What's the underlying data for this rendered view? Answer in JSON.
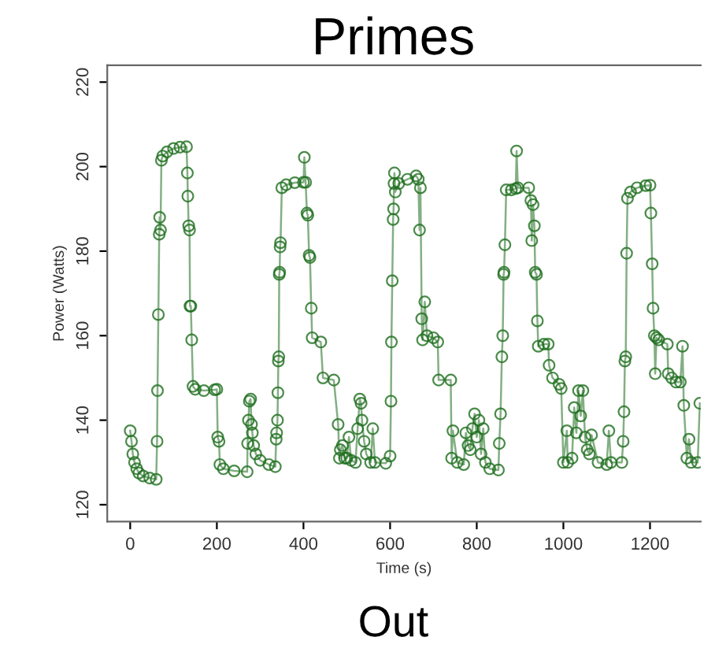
{
  "chart_data": {
    "type": "line",
    "title": "Primes",
    "xlabel": "Time (s)",
    "ylabel": "Power (Watts)",
    "annotations": [
      "Out"
    ],
    "xlim": [
      -53,
      1317
    ],
    "ylim": [
      116,
      224
    ],
    "xticks": [
      0,
      200,
      400,
      600,
      800,
      1000,
      1200
    ],
    "yticks": [
      120,
      140,
      160,
      180,
      200,
      220
    ],
    "grid": false,
    "legend": false,
    "marker": "circle",
    "line_style": "solid",
    "series": [
      {
        "color": "#1e6e1e",
        "x": [
          0,
          3,
          6,
          10,
          15,
          20,
          30,
          45,
          60,
          62,
          63,
          65,
          67,
          68,
          70,
          72,
          75,
          85,
          100,
          115,
          130,
          132,
          133,
          135,
          137,
          138,
          140,
          142,
          145,
          150,
          170,
          195,
          200,
          202,
          205,
          207,
          215,
          240,
          270,
          271,
          273,
          275,
          278,
          280,
          282,
          285,
          290,
          300,
          320,
          335,
          337,
          338,
          340,
          341,
          342,
          343,
          344,
          345,
          346,
          347,
          350,
          360,
          380,
          400,
          402,
          405,
          408,
          410,
          413,
          415,
          418,
          420,
          440,
          445,
          470,
          480,
          483,
          485,
          490,
          495,
          500,
          505,
          510,
          520,
          525,
          530,
          533,
          535,
          540,
          545,
          555,
          560,
          565,
          590,
          600,
          602,
          603,
          605,
          607,
          608,
          609,
          610,
          612,
          620,
          640,
          660,
          665,
          668,
          670,
          673,
          675,
          680,
          685,
          700,
          710,
          712,
          740,
          742,
          745,
          755,
          770,
          775,
          780,
          785,
          790,
          795,
          800,
          805,
          810,
          815,
          820,
          830,
          850,
          852,
          855,
          858,
          860,
          862,
          863,
          865,
          868,
          880,
          890,
          892,
          895,
          920,
          925,
          927,
          930,
          933,
          935,
          938,
          940,
          942,
          955,
          965,
          967,
          975,
          990,
          995,
          1000,
          1008,
          1010,
          1020,
          1025,
          1030,
          1035,
          1040,
          1045,
          1050,
          1055,
          1060,
          1065,
          1080,
          1100,
          1105,
          1110,
          1135,
          1138,
          1140,
          1142,
          1144,
          1146,
          1148,
          1155,
          1170,
          1190,
          1200,
          1202,
          1205,
          1207,
          1210,
          1212,
          1215,
          1220,
          1240,
          1242,
          1250,
          1260,
          1270,
          1275,
          1278,
          1285,
          1290,
          1295,
          1310,
          1315
        ],
        "values": [
          137.5,
          135,
          132,
          130,
          128.5,
          127.5,
          126.8,
          126.3,
          126,
          135,
          147,
          165,
          184,
          188,
          185,
          201.5,
          202.5,
          203.5,
          204.3,
          204.6,
          204.7,
          198.5,
          193,
          186,
          185,
          167,
          167,
          159,
          148,
          147.3,
          147,
          147.2,
          147.3,
          136,
          135,
          129.5,
          128.5,
          128,
          127.8,
          134.5,
          140,
          144.5,
          145,
          139,
          137,
          134,
          132,
          130.5,
          129.5,
          129,
          135.5,
          137,
          140,
          146.5,
          154,
          155,
          174.5,
          175,
          181,
          182,
          195,
          195.7,
          196.2,
          196.3,
          202.2,
          196.3,
          189,
          188.5,
          179,
          178.5,
          166.5,
          159.5,
          158.5,
          150,
          149.5,
          139,
          131,
          133,
          134,
          131,
          131,
          136,
          130.5,
          130,
          138,
          145,
          144,
          140,
          135,
          132,
          130,
          138,
          130,
          129.8,
          131.5,
          144.5,
          158.5,
          173,
          187.5,
          190,
          196,
          198.5,
          194,
          196,
          197,
          197.8,
          197,
          185,
          195,
          164,
          159,
          168,
          160,
          159.5,
          158.5,
          149.5,
          149.5,
          131,
          137.5,
          130,
          129.5,
          137,
          134,
          133,
          138,
          141.5,
          136,
          140,
          132,
          138,
          130,
          128.5,
          128.2,
          134.5,
          141.5,
          155,
          160,
          174.5,
          175,
          181.5,
          194.5,
          194.5,
          194.8,
          203.7,
          195,
          195,
          192,
          182.5,
          191,
          186,
          175,
          174.5,
          163.5,
          157.5,
          158,
          158,
          153,
          150,
          148.5,
          147.5,
          130,
          137.5,
          130,
          131,
          143,
          137,
          147,
          141,
          147,
          136,
          133,
          132,
          136.5,
          130,
          129.5,
          137.5,
          130,
          130,
          135,
          142,
          154,
          155,
          179.5,
          192.5,
          194,
          195,
          195.5,
          195.6,
          189,
          177,
          166.5,
          160,
          151,
          159.5,
          159,
          158,
          151,
          150,
          149,
          149,
          157.5,
          143.5,
          131,
          135.5,
          130,
          130,
          144
        ]
      }
    ]
  }
}
